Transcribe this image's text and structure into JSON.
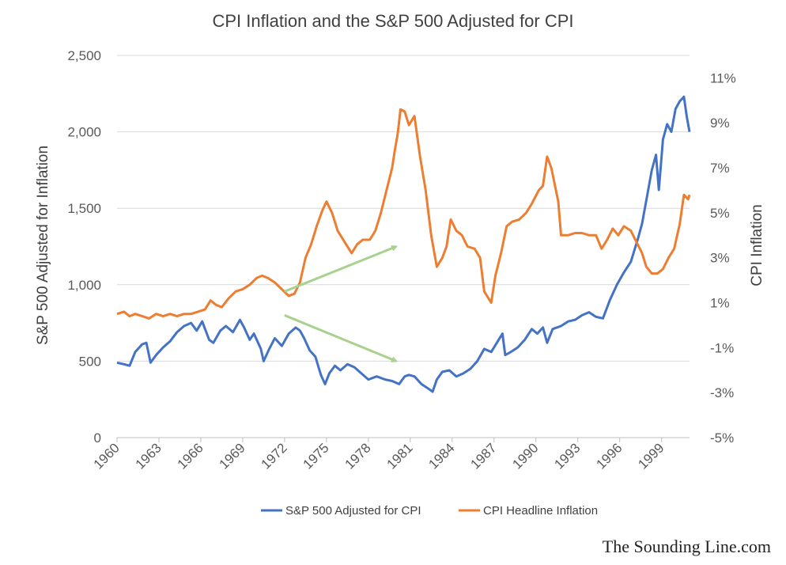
{
  "chart_data": {
    "type": "line",
    "title": "CPI Inflation and the S&P 500 Adjusted for CPI",
    "ylabel": "S&P 500 Adjusted for Inflation",
    "y2label": "CPI Inflation",
    "xlabel": "",
    "xlim": [
      1960,
      2001
    ],
    "ylim": [
      0,
      2500
    ],
    "y2lim": [
      -5,
      12
    ],
    "x_ticks": [
      {
        "v": 1960,
        "label": "1960"
      },
      {
        "v": 1963,
        "label": "1963"
      },
      {
        "v": 1966,
        "label": "1966"
      },
      {
        "v": 1969,
        "label": "1969"
      },
      {
        "v": 1972,
        "label": "1972"
      },
      {
        "v": 1975,
        "label": "1975"
      },
      {
        "v": 1978,
        "label": "1978"
      },
      {
        "v": 1981,
        "label": "1981"
      },
      {
        "v": 1984,
        "label": "1984"
      },
      {
        "v": 1987,
        "label": "1987"
      },
      {
        "v": 1990,
        "label": "1990"
      },
      {
        "v": 1993,
        "label": "1993"
      },
      {
        "v": 1996,
        "label": "1996"
      },
      {
        "v": 1999,
        "label": "1999"
      }
    ],
    "y_ticks": [
      {
        "v": 0,
        "label": "0"
      },
      {
        "v": 500,
        "label": "500"
      },
      {
        "v": 1000,
        "label": "1,000"
      },
      {
        "v": 1500,
        "label": "1,500"
      },
      {
        "v": 2000,
        "label": "2,000"
      },
      {
        "v": 2500,
        "label": "2,500"
      }
    ],
    "y2_ticks": [
      {
        "v": -5,
        "label": "-5%"
      },
      {
        "v": -3,
        "label": "-3%"
      },
      {
        "v": -1,
        "label": "-1%"
      },
      {
        "v": 1,
        "label": "1%"
      },
      {
        "v": 3,
        "label": "3%"
      },
      {
        "v": 5,
        "label": "5%"
      },
      {
        "v": 7,
        "label": "7%"
      },
      {
        "v": 9,
        "label": "9%"
      },
      {
        "v": 11,
        "label": "11%"
      }
    ],
    "grid": true,
    "legend_position": "bottom",
    "series": [
      {
        "name": "S&P 500 Adjusted for CPI",
        "axis": "left",
        "color": "#4472C4",
        "points": [
          [
            1960.0,
            490
          ],
          [
            1960.5,
            480
          ],
          [
            1960.9,
            470
          ],
          [
            1961.3,
            560
          ],
          [
            1961.8,
            610
          ],
          [
            1962.1,
            620
          ],
          [
            1962.4,
            490
          ],
          [
            1962.8,
            540
          ],
          [
            1963.3,
            590
          ],
          [
            1963.8,
            630
          ],
          [
            1964.3,
            690
          ],
          [
            1964.8,
            730
          ],
          [
            1965.3,
            750
          ],
          [
            1965.7,
            700
          ],
          [
            1966.1,
            760
          ],
          [
            1966.6,
            640
          ],
          [
            1966.9,
            620
          ],
          [
            1967.4,
            700
          ],
          [
            1967.8,
            730
          ],
          [
            1968.3,
            690
          ],
          [
            1968.8,
            770
          ],
          [
            1969.1,
            720
          ],
          [
            1969.5,
            640
          ],
          [
            1969.8,
            680
          ],
          [
            1970.3,
            580
          ],
          [
            1970.5,
            500
          ],
          [
            1970.9,
            580
          ],
          [
            1971.3,
            650
          ],
          [
            1971.8,
            600
          ],
          [
            1972.3,
            680
          ],
          [
            1972.8,
            720
          ],
          [
            1973.1,
            700
          ],
          [
            1973.4,
            650
          ],
          [
            1973.8,
            570
          ],
          [
            1974.2,
            530
          ],
          [
            1974.6,
            410
          ],
          [
            1974.9,
            350
          ],
          [
            1975.2,
            420
          ],
          [
            1975.6,
            470
          ],
          [
            1976.0,
            440
          ],
          [
            1976.5,
            480
          ],
          [
            1977.0,
            460
          ],
          [
            1977.5,
            420
          ],
          [
            1978.0,
            380
          ],
          [
            1978.6,
            400
          ],
          [
            1979.2,
            380
          ],
          [
            1979.7,
            370
          ],
          [
            1980.2,
            350
          ],
          [
            1980.6,
            400
          ],
          [
            1980.9,
            410
          ],
          [
            1981.3,
            400
          ],
          [
            1981.8,
            350
          ],
          [
            1982.3,
            320
          ],
          [
            1982.6,
            300
          ],
          [
            1982.9,
            380
          ],
          [
            1983.3,
            430
          ],
          [
            1983.8,
            440
          ],
          [
            1984.3,
            400
          ],
          [
            1984.8,
            420
          ],
          [
            1985.3,
            450
          ],
          [
            1985.8,
            500
          ],
          [
            1986.3,
            580
          ],
          [
            1986.8,
            560
          ],
          [
            1987.2,
            620
          ],
          [
            1987.6,
            680
          ],
          [
            1987.8,
            540
          ],
          [
            1988.2,
            560
          ],
          [
            1988.7,
            590
          ],
          [
            1989.2,
            640
          ],
          [
            1989.7,
            710
          ],
          [
            1990.1,
            680
          ],
          [
            1990.5,
            720
          ],
          [
            1990.8,
            620
          ],
          [
            1991.2,
            710
          ],
          [
            1991.8,
            730
          ],
          [
            1992.3,
            760
          ],
          [
            1992.8,
            770
          ],
          [
            1993.3,
            800
          ],
          [
            1993.8,
            820
          ],
          [
            1994.3,
            790
          ],
          [
            1994.8,
            780
          ],
          [
            1995.3,
            900
          ],
          [
            1995.8,
            1000
          ],
          [
            1996.3,
            1080
          ],
          [
            1996.8,
            1150
          ],
          [
            1997.3,
            1300
          ],
          [
            1997.6,
            1400
          ],
          [
            1997.9,
            1550
          ],
          [
            1998.3,
            1750
          ],
          [
            1998.6,
            1850
          ],
          [
            1998.8,
            1620
          ],
          [
            1999.1,
            1950
          ],
          [
            1999.4,
            2050
          ],
          [
            1999.7,
            2000
          ],
          [
            2000.0,
            2150
          ],
          [
            2000.3,
            2200
          ],
          [
            2000.6,
            2230
          ],
          [
            2000.8,
            2100
          ],
          [
            2001.0,
            2000
          ]
        ]
      },
      {
        "name": "CPI Headline Inflation",
        "axis": "right",
        "color": "#ED7D31",
        "points": [
          [
            1960.0,
            0.5
          ],
          [
            1960.5,
            0.6
          ],
          [
            1960.9,
            0.4
          ],
          [
            1961.3,
            0.5
          ],
          [
            1961.8,
            0.4
          ],
          [
            1962.3,
            0.3
          ],
          [
            1962.8,
            0.5
          ],
          [
            1963.3,
            0.4
          ],
          [
            1963.8,
            0.5
          ],
          [
            1964.3,
            0.4
          ],
          [
            1964.8,
            0.5
          ],
          [
            1965.3,
            0.5
          ],
          [
            1965.8,
            0.6
          ],
          [
            1966.3,
            0.7
          ],
          [
            1966.7,
            1.1
          ],
          [
            1967.1,
            0.9
          ],
          [
            1967.5,
            0.8
          ],
          [
            1968.0,
            1.2
          ],
          [
            1968.5,
            1.5
          ],
          [
            1969.0,
            1.6
          ],
          [
            1969.5,
            1.8
          ],
          [
            1970.0,
            2.1
          ],
          [
            1970.4,
            2.2
          ],
          [
            1970.8,
            2.1
          ],
          [
            1971.3,
            1.9
          ],
          [
            1971.8,
            1.6
          ],
          [
            1972.3,
            1.3
          ],
          [
            1972.7,
            1.4
          ],
          [
            1973.1,
            1.9
          ],
          [
            1973.5,
            3.0
          ],
          [
            1973.9,
            3.6
          ],
          [
            1974.3,
            4.4
          ],
          [
            1974.7,
            5.1
          ],
          [
            1975.0,
            5.5
          ],
          [
            1975.4,
            5.0
          ],
          [
            1975.8,
            4.2
          ],
          [
            1976.3,
            3.7
          ],
          [
            1976.8,
            3.2
          ],
          [
            1977.2,
            3.6
          ],
          [
            1977.6,
            3.8
          ],
          [
            1978.1,
            3.8
          ],
          [
            1978.5,
            4.2
          ],
          [
            1978.9,
            5.0
          ],
          [
            1979.3,
            6.0
          ],
          [
            1979.7,
            7.0
          ],
          [
            1979.9,
            7.8
          ],
          [
            1980.1,
            8.5
          ],
          [
            1980.3,
            9.6
          ],
          [
            1980.6,
            9.5
          ],
          [
            1980.9,
            8.9
          ],
          [
            1981.3,
            9.3
          ],
          [
            1981.7,
            7.5
          ],
          [
            1982.1,
            6.0
          ],
          [
            1982.5,
            4.0
          ],
          [
            1982.9,
            2.6
          ],
          [
            1983.3,
            3.0
          ],
          [
            1983.6,
            3.5
          ],
          [
            1983.9,
            4.7
          ],
          [
            1984.3,
            4.2
          ],
          [
            1984.7,
            4.0
          ],
          [
            1985.1,
            3.5
          ],
          [
            1985.6,
            3.4
          ],
          [
            1986.0,
            3.0
          ],
          [
            1986.3,
            1.5
          ],
          [
            1986.8,
            1.0
          ],
          [
            1987.1,
            2.2
          ],
          [
            1987.5,
            3.2
          ],
          [
            1987.9,
            4.4
          ],
          [
            1988.3,
            4.6
          ],
          [
            1988.8,
            4.7
          ],
          [
            1989.3,
            5.0
          ],
          [
            1989.7,
            5.4
          ],
          [
            1990.2,
            6.0
          ],
          [
            1990.5,
            6.2
          ],
          [
            1990.8,
            7.5
          ],
          [
            1991.1,
            7.0
          ],
          [
            1991.6,
            5.5
          ],
          [
            1991.8,
            4.0
          ],
          [
            1992.3,
            4.0
          ],
          [
            1992.8,
            4.1
          ],
          [
            1993.3,
            4.1
          ],
          [
            1993.8,
            4.0
          ],
          [
            1994.3,
            4.0
          ],
          [
            1994.7,
            3.4
          ],
          [
            1995.1,
            3.8
          ],
          [
            1995.5,
            4.3
          ],
          [
            1995.9,
            4.0
          ],
          [
            1996.3,
            4.4
          ],
          [
            1996.8,
            4.2
          ],
          [
            1997.2,
            3.7
          ],
          [
            1997.6,
            3.2
          ],
          [
            1997.9,
            2.6
          ],
          [
            1998.3,
            2.3
          ],
          [
            1998.7,
            2.3
          ],
          [
            1999.1,
            2.5
          ],
          [
            1999.5,
            3.0
          ],
          [
            1999.9,
            3.4
          ],
          [
            2000.3,
            4.5
          ],
          [
            2000.6,
            5.8
          ],
          [
            2000.9,
            5.6
          ],
          [
            2001.0,
            5.8
          ]
        ]
      }
    ],
    "annotations": [
      {
        "type": "arrow",
        "color": "#A9D18E",
        "from": [
          1972.0,
          1.5
        ],
        "to": [
          1980.0,
          3.5
        ],
        "axis": "right"
      },
      {
        "type": "arrow",
        "color": "#A9D18E",
        "from": [
          1972.0,
          800
        ],
        "to": [
          1980.0,
          500
        ],
        "axis": "left"
      }
    ]
  },
  "credit": "The Sounding Line.com"
}
